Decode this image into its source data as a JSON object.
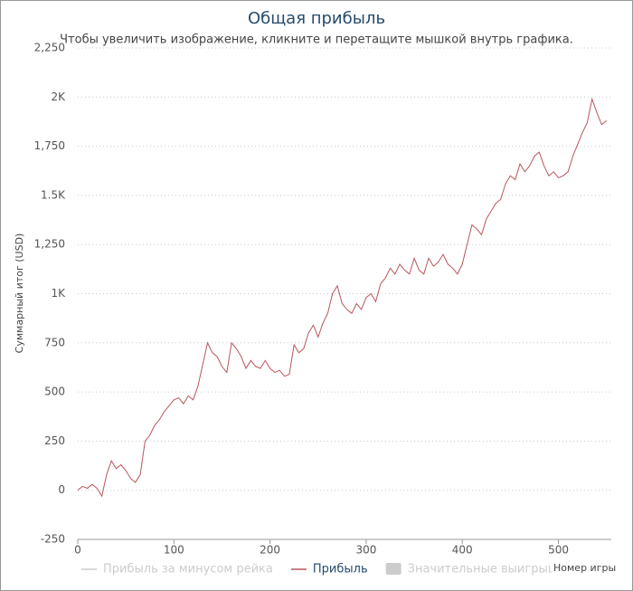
{
  "chart_data": {
    "type": "line",
    "title": "Общая прибыль",
    "subtitle": "Чтобы увеличить изображение, кликните и перетащите мышкой внутрь графика.",
    "y_label": "Суммарный итог (USD)",
    "x_label": "Номер игры",
    "x": [
      0,
      5,
      10,
      15,
      20,
      25,
      30,
      35,
      40,
      45,
      50,
      55,
      60,
      65,
      70,
      75,
      80,
      85,
      90,
      95,
      100,
      105,
      110,
      115,
      120,
      125,
      130,
      135,
      140,
      145,
      150,
      155,
      160,
      165,
      170,
      175,
      180,
      185,
      190,
      195,
      200,
      205,
      210,
      215,
      220,
      225,
      230,
      235,
      240,
      245,
      250,
      255,
      260,
      265,
      270,
      275,
      280,
      285,
      290,
      295,
      300,
      305,
      310,
      315,
      320,
      325,
      330,
      335,
      340,
      345,
      350,
      355,
      360,
      365,
      370,
      375,
      380,
      385,
      390,
      395,
      400,
      405,
      410,
      415,
      420,
      425,
      430,
      435,
      440,
      445,
      450,
      455,
      460,
      465,
      470,
      475,
      480,
      485,
      490,
      495,
      500,
      505,
      510,
      515,
      520,
      525,
      530,
      535,
      540,
      545,
      550
    ],
    "series": [
      {
        "name": "Прибыль",
        "color": "#b8565c",
        "values": [
          0,
          20,
          10,
          30,
          10,
          -30,
          80,
          150,
          110,
          130,
          100,
          60,
          40,
          80,
          250,
          280,
          330,
          360,
          400,
          430,
          460,
          470,
          440,
          480,
          460,
          530,
          640,
          750,
          700,
          680,
          630,
          600,
          750,
          720,
          680,
          620,
          660,
          630,
          620,
          660,
          620,
          600,
          610,
          580,
          590,
          740,
          700,
          720,
          800,
          840,
          780,
          850,
          900,
          1000,
          1040,
          950,
          920,
          900,
          950,
          920,
          980,
          1000,
          960,
          1050,
          1080,
          1130,
          1100,
          1150,
          1120,
          1100,
          1180,
          1120,
          1100,
          1180,
          1140,
          1160,
          1200,
          1150,
          1130,
          1100,
          1150,
          1250,
          1350,
          1330,
          1300,
          1380,
          1420,
          1460,
          1480,
          1560,
          1600,
          1580,
          1660,
          1620,
          1650,
          1700,
          1720,
          1650,
          1600,
          1620,
          1590,
          1600,
          1620,
          1700,
          1760,
          1820,
          1870,
          1990,
          1920,
          1860,
          1880
        ]
      }
    ],
    "legend": [
      {
        "name": "Прибыль за минусом рейка",
        "color": "#cccccc",
        "symbol": "line",
        "hidden": true
      },
      {
        "name": "Прибыль",
        "color": "#b8565c",
        "symbol": "line",
        "hidden": false
      },
      {
        "name": "Значительные выигрыши",
        "color": "#cccccc",
        "symbol": "box",
        "hidden": true
      }
    ],
    "xlim": [
      0,
      555
    ],
    "xticks": [
      0,
      100,
      200,
      300,
      400,
      500
    ],
    "ylim": [
      -250,
      2250
    ],
    "yticks": [
      -250,
      0,
      250,
      500,
      750,
      {
        "value": 1000,
        "label": "1K"
      },
      {
        "value": 1250,
        "label": "1,250"
      },
      {
        "value": 1500,
        "label": "1.5K"
      },
      {
        "value": 1750,
        "label": "1,750"
      },
      {
        "value": 2000,
        "label": "2K"
      },
      {
        "value": 2250,
        "label": "2,250"
      }
    ],
    "grid": true
  }
}
